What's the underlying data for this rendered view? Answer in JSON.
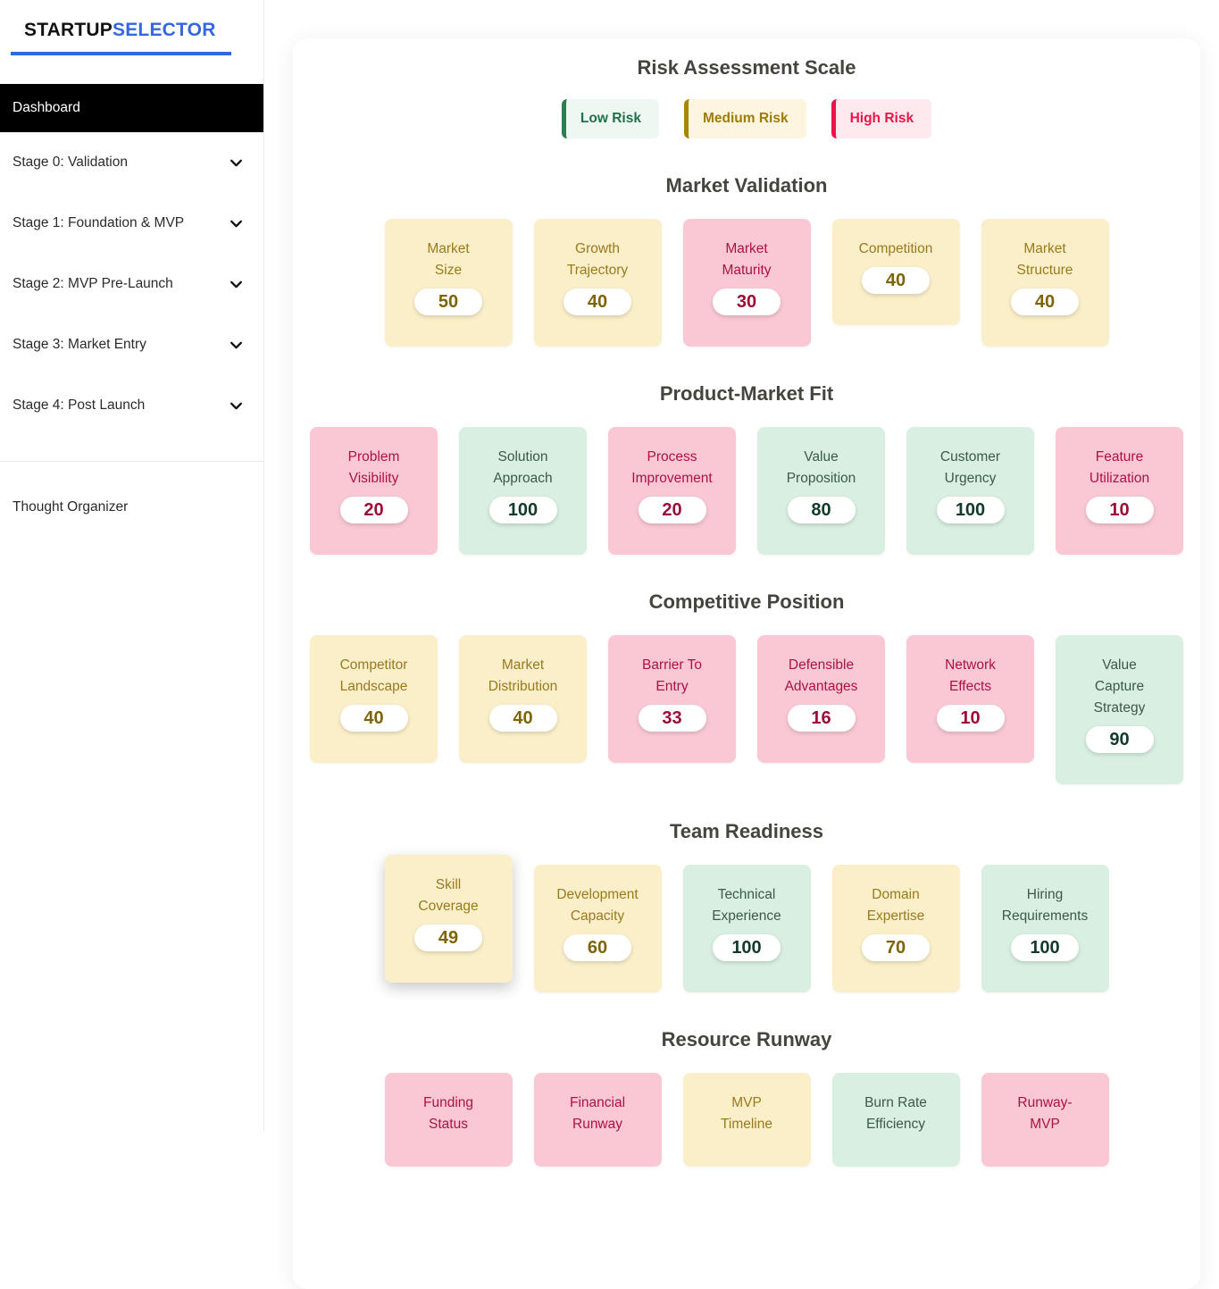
{
  "sidebar": {
    "logo_primary": "STARTUP",
    "logo_secondary": "SELECTOR",
    "dashboard_label": "Dashboard",
    "stages": [
      {
        "label": "Stage 0: Validation"
      },
      {
        "label": "Stage 1: Foundation & MVP"
      },
      {
        "label": "Stage 2: MVP Pre-Launch"
      },
      {
        "label": "Stage 3: Market Entry"
      },
      {
        "label": "Stage 4: Post Launch"
      }
    ],
    "footer_item": "Thought Organizer"
  },
  "colors": {
    "accent_blue": "#3467DF",
    "heading": "#45443E",
    "risk_medium": {
      "card_bg": "#FAEFC9",
      "label": "#9A7A1C",
      "value": "#7E6408",
      "legend_bg": "#FDF5DF",
      "legend_border": "#A98500",
      "legend_text": "#9C7D0A"
    },
    "risk_high": {
      "card_bg": "#F9C8D4",
      "label": "#AD1240",
      "value": "#9B0C36",
      "legend_bg": "#FDE9EE",
      "legend_border": "#EF1248",
      "legend_text": "#E8174A"
    },
    "risk_low": {
      "card_bg": "#D8EFE1",
      "label": "#3C594B",
      "value": "#143A2B",
      "legend_bg": "#EEF7F2",
      "legend_border": "#2E7D52",
      "legend_text": "#20714A"
    }
  },
  "risk_scale": {
    "title": "Risk Assessment Scale",
    "levels": [
      {
        "label": "Low Risk",
        "risk": "low"
      },
      {
        "label": "Medium Risk",
        "risk": "medium"
      },
      {
        "label": "High Risk",
        "risk": "high"
      }
    ]
  },
  "sections": [
    {
      "title": "Market Validation",
      "cards": [
        {
          "label": "Market\nSize",
          "value": "50",
          "risk": "medium"
        },
        {
          "label": "Growth\nTrajectory",
          "value": "40",
          "risk": "medium"
        },
        {
          "label": "Market\nMaturity",
          "value": "30",
          "risk": "high"
        },
        {
          "label": "Competition",
          "value": "40",
          "risk": "medium"
        },
        {
          "label": "Market\nStructure",
          "value": "40",
          "risk": "medium"
        }
      ]
    },
    {
      "title": "Product-Market Fit",
      "cards": [
        {
          "label": "Problem\nVisibility",
          "value": "20",
          "risk": "high"
        },
        {
          "label": "Solution\nApproach",
          "value": "100",
          "risk": "low"
        },
        {
          "label": "Process\nImprovement",
          "value": "20",
          "risk": "high"
        },
        {
          "label": "Value\nProposition",
          "value": "80",
          "risk": "low"
        },
        {
          "label": "Customer\nUrgency",
          "value": "100",
          "risk": "low"
        },
        {
          "label": "Feature\nUtilization",
          "value": "10",
          "risk": "high"
        }
      ]
    },
    {
      "title": "Competitive Position",
      "cards": [
        {
          "label": "Competitor\nLandscape",
          "value": "40",
          "risk": "medium"
        },
        {
          "label": "Market\nDistribution",
          "value": "40",
          "risk": "medium"
        },
        {
          "label": "Barrier To\nEntry",
          "value": "33",
          "risk": "high"
        },
        {
          "label": "Defensible\nAdvantages",
          "value": "16",
          "risk": "high"
        },
        {
          "label": "Network\nEffects",
          "value": "10",
          "risk": "high"
        },
        {
          "label": "Value\nCapture\nStrategy",
          "value": "90",
          "risk": "low"
        }
      ]
    },
    {
      "title": "Team Readiness",
      "cards": [
        {
          "label": "Skill\nCoverage",
          "value": "49",
          "risk": "medium",
          "elevated": true
        },
        {
          "label": "Development\nCapacity",
          "value": "60",
          "risk": "medium"
        },
        {
          "label": "Technical\nExperience",
          "value": "100",
          "risk": "low"
        },
        {
          "label": "Domain\nExpertise",
          "value": "70",
          "risk": "medium"
        },
        {
          "label": "Hiring\nRequirements",
          "value": "100",
          "risk": "low"
        }
      ]
    },
    {
      "title": "Resource Runway",
      "cards": [
        {
          "label": "Funding\nStatus",
          "value": null,
          "risk": "high"
        },
        {
          "label": "Financial\nRunway",
          "value": null,
          "risk": "high"
        },
        {
          "label": "MVP\nTimeline",
          "value": null,
          "risk": "medium"
        },
        {
          "label": "Burn Rate\nEfficiency",
          "value": null,
          "risk": "low"
        },
        {
          "label": "Runway-\nMVP",
          "value": null,
          "risk": "high"
        }
      ]
    }
  ]
}
